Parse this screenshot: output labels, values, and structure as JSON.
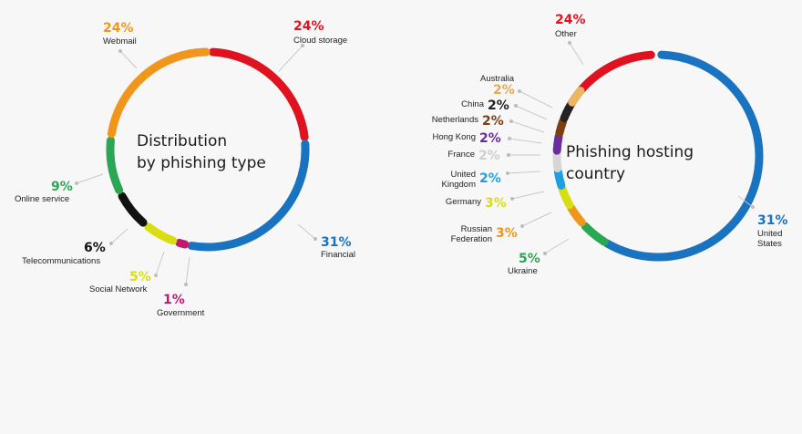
{
  "chart_data": [
    {
      "type": "pie",
      "title": "Distribution by phishing type",
      "title_lines": [
        "Distribution",
        "by phishing type"
      ],
      "style": "donut-ring",
      "start_label": "Cloud storage",
      "series": [
        {
          "label": "Cloud storage",
          "value": 24,
          "value_label": "24%",
          "color": "#e0121f",
          "label_lines": [
            "Cloud storage"
          ]
        },
        {
          "label": "Financial",
          "value": 31,
          "value_label": "31%",
          "color": "#1a73c0",
          "label_lines": [
            "Financial"
          ]
        },
        {
          "label": "Government",
          "value": 1,
          "value_label": "1%",
          "color": "#c01a6e",
          "label_lines": [
            "Government"
          ]
        },
        {
          "label": "Social Network",
          "value": 5,
          "value_label": "5%",
          "color": "#d9de12",
          "label_lines": [
            "Social Network"
          ]
        },
        {
          "label": "Telecommunications",
          "value": 6,
          "value_label": "6%",
          "color": "#111111",
          "label_lines": [
            "Telecommunications"
          ]
        },
        {
          "label": "Online service",
          "value": 9,
          "value_label": "9%",
          "color": "#2aa655",
          "label_lines": [
            "Online service"
          ]
        },
        {
          "label": "Webmail",
          "value": 24,
          "value_label": "24%",
          "color": "#f0961c",
          "label_lines": [
            "Webmail"
          ]
        }
      ]
    },
    {
      "type": "pie",
      "title": "Phishing hosting country",
      "title_lines": [
        "Phishing hosting",
        "country"
      ],
      "style": "donut-ring",
      "series": [
        {
          "label": "Other",
          "value": 24,
          "value_label": "24%",
          "color": "#e0121f",
          "label_lines": [
            "Other"
          ]
        },
        {
          "label": "United States",
          "value": 31,
          "value_label": "31%",
          "color": "#1a73c0",
          "label_lines": [
            "United",
            "States"
          ]
        },
        {
          "label": "Ukraine",
          "value": 5,
          "value_label": "5%",
          "color": "#2aa655",
          "label_lines": [
            "Ukraine"
          ]
        },
        {
          "label": "Russian Federation",
          "value": 3,
          "value_label": "3%",
          "color": "#f0961c",
          "label_lines": [
            "Russian",
            "Federation"
          ]
        },
        {
          "label": "Germany",
          "value": 3,
          "value_label": "3%",
          "color": "#d9de12",
          "label_lines": [
            "Germany"
          ]
        },
        {
          "label": "United Kingdom",
          "value": 2,
          "value_label": "2%",
          "color": "#1e9fe0",
          "label_lines": [
            "United",
            "Kingdom"
          ]
        },
        {
          "label": "France",
          "value": 2,
          "value_label": "2%",
          "color": "#d6d6d6",
          "label_lines": [
            "France"
          ]
        },
        {
          "label": "Hong Kong",
          "value": 2,
          "value_label": "2%",
          "color": "#6a2da0",
          "label_lines": [
            "Hong Kong"
          ]
        },
        {
          "label": "Netherlands",
          "value": 2,
          "value_label": "2%",
          "color": "#7a3f12",
          "label_lines": [
            "Netherlands"
          ]
        },
        {
          "label": "China",
          "value": 2,
          "value_label": "2%",
          "color": "#222222",
          "label_lines": [
            "China"
          ]
        },
        {
          "label": "Australia",
          "value": 2,
          "value_label": "2%",
          "color": "#e8b860",
          "label_lines": [
            "Australia"
          ]
        }
      ]
    }
  ]
}
